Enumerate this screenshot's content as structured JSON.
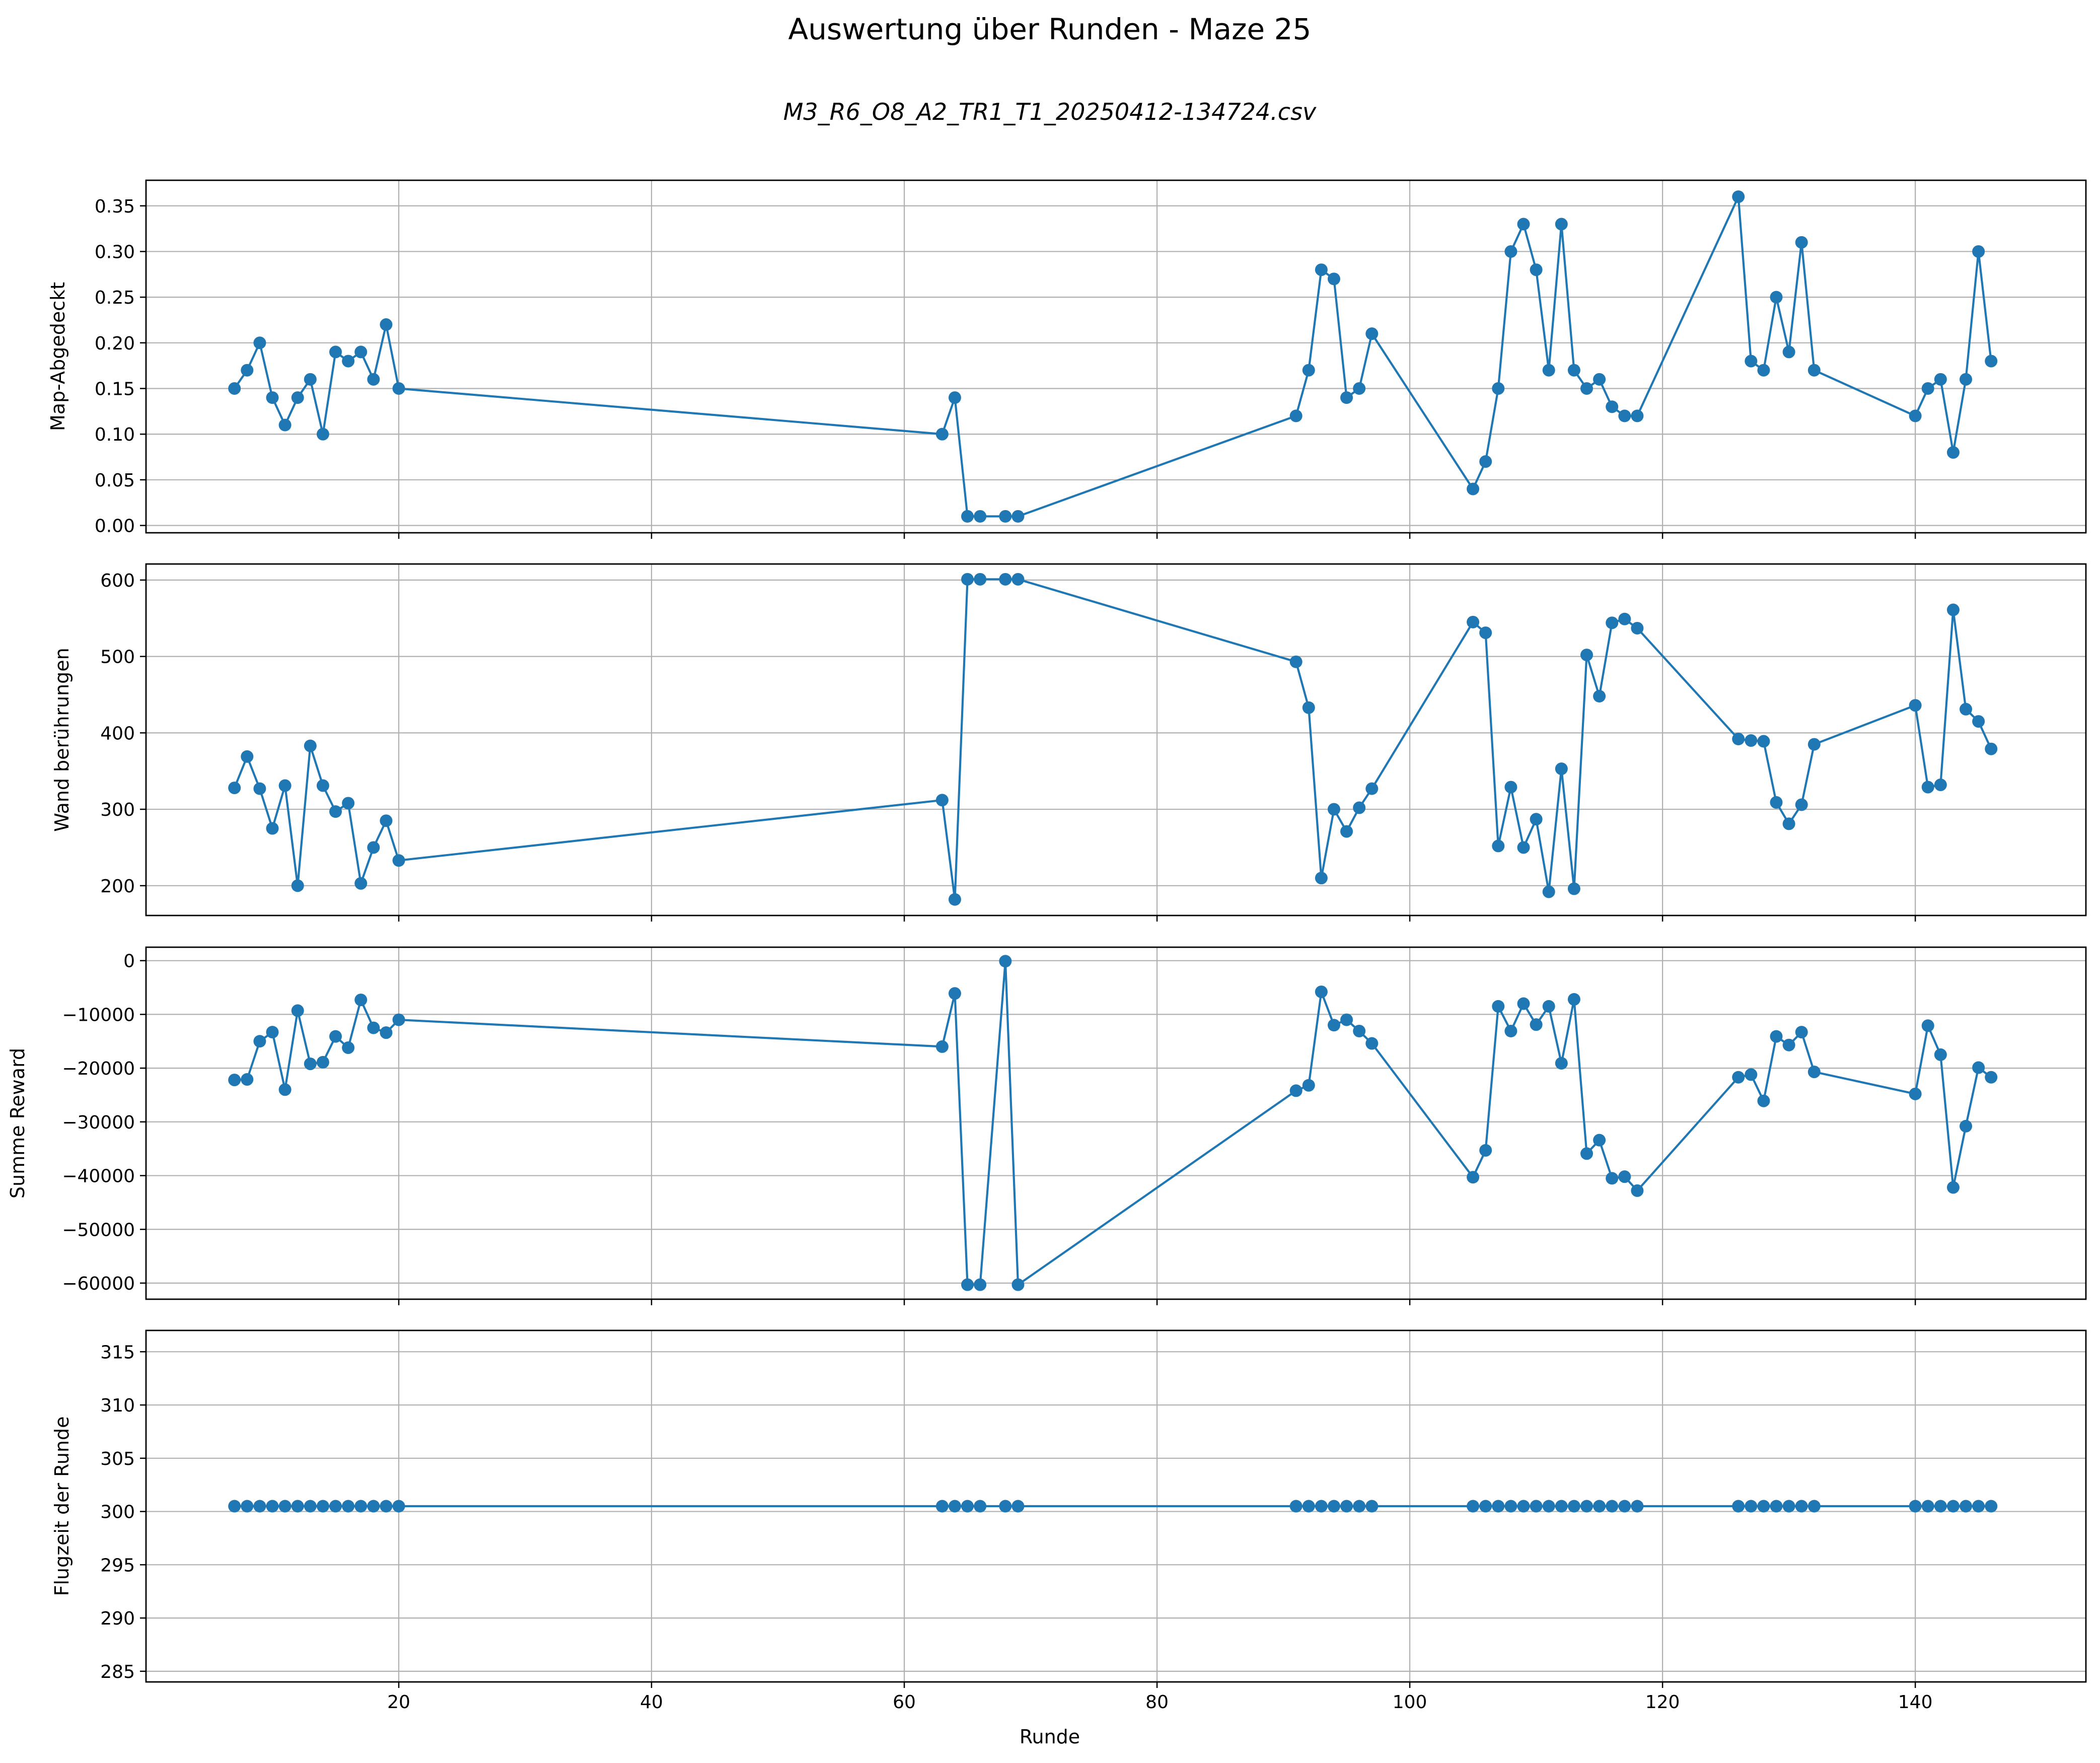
{
  "figure": {
    "title": "Auswertung über Runden - Maze 25",
    "subtitle": "M3_R6_O8_A2_TR1_T1_20250412-134724.csv",
    "xlabel": "Runde"
  },
  "colors": {
    "series": "#1f77b4",
    "grid": "#b0b0b0",
    "axes": "#000000"
  },
  "chart_data": [
    {
      "type": "line",
      "ylabel": "Map-Abgedeckt",
      "grid": true,
      "xlim": [
        0,
        153.5
      ],
      "ylim": [
        -0.008,
        0.378
      ],
      "xticks": [
        20,
        40,
        60,
        80,
        100,
        120,
        140
      ],
      "yticks": [
        0.0,
        0.05,
        0.1,
        0.15,
        0.2,
        0.25,
        0.3,
        0.35
      ],
      "ytick_labels": [
        "0.00",
        "0.05",
        "0.10",
        "0.15",
        "0.20",
        "0.25",
        "0.30",
        "0.35"
      ],
      "x": [
        7,
        8,
        9,
        10,
        11,
        12,
        13,
        14,
        15,
        16,
        17,
        18,
        19,
        20,
        63,
        64,
        65,
        66,
        68,
        69,
        91,
        92,
        93,
        94,
        95,
        96,
        97,
        105,
        106,
        107,
        108,
        109,
        110,
        111,
        112,
        113,
        114,
        115,
        116,
        117,
        118,
        126,
        127,
        128,
        129,
        130,
        131,
        132,
        140,
        141,
        142,
        143,
        144,
        145,
        146
      ],
      "y": [
        0.15,
        0.17,
        0.2,
        0.14,
        0.11,
        0.14,
        0.16,
        0.1,
        0.19,
        0.18,
        0.19,
        0.16,
        0.22,
        0.15,
        0.1,
        0.14,
        0.01,
        0.01,
        0.01,
        0.01,
        0.12,
        0.17,
        0.28,
        0.27,
        0.14,
        0.15,
        0.21,
        0.04,
        0.07,
        0.15,
        0.3,
        0.33,
        0.28,
        0.17,
        0.33,
        0.17,
        0.15,
        0.16,
        0.13,
        0.12,
        0.12,
        0.36,
        0.18,
        0.17,
        0.25,
        0.19,
        0.31,
        0.17,
        0.12,
        0.15,
        0.16,
        0.08,
        0.16,
        0.3,
        0.18
      ]
    },
    {
      "type": "line",
      "ylabel": "Wand berührungen",
      "grid": true,
      "xlim": [
        0,
        153.5
      ],
      "ylim": [
        161,
        621
      ],
      "xticks": [
        20,
        40,
        60,
        80,
        100,
        120,
        140
      ],
      "yticks": [
        200,
        300,
        400,
        500,
        600
      ],
      "ytick_labels": [
        "200",
        "300",
        "400",
        "500",
        "600"
      ],
      "x": [
        7,
        8,
        9,
        10,
        11,
        12,
        13,
        14,
        15,
        16,
        17,
        18,
        19,
        20,
        63,
        64,
        65,
        66,
        68,
        69,
        91,
        92,
        93,
        94,
        95,
        96,
        97,
        105,
        106,
        107,
        108,
        109,
        110,
        111,
        112,
        113,
        114,
        115,
        116,
        117,
        118,
        126,
        127,
        128,
        129,
        130,
        131,
        132,
        140,
        141,
        142,
        143,
        144,
        145,
        146
      ],
      "y": [
        328,
        369,
        327,
        275,
        331,
        200,
        383,
        331,
        297,
        308,
        203,
        250,
        285,
        233,
        312,
        182,
        601,
        601,
        601,
        601,
        493,
        433,
        210,
        300,
        271,
        302,
        327,
        545,
        531,
        252,
        329,
        250,
        287,
        192,
        353,
        196,
        502,
        448,
        544,
        549,
        537,
        392,
        390,
        389,
        309,
        281,
        306,
        385,
        436,
        329,
        332,
        561,
        431,
        415,
        379
      ]
    },
    {
      "type": "line",
      "ylabel": "Summe Reward",
      "grid": true,
      "xlim": [
        0,
        153.5
      ],
      "ylim": [
        -63000,
        2500
      ],
      "xticks": [
        20,
        40,
        60,
        80,
        100,
        120,
        140
      ],
      "yticks": [
        0,
        -10000,
        -20000,
        -30000,
        -40000,
        -50000,
        -60000
      ],
      "ytick_labels": [
        "0",
        "−10000",
        "−20000",
        "−30000",
        "−40000",
        "−50000",
        "−60000"
      ],
      "x": [
        7,
        8,
        9,
        10,
        11,
        12,
        13,
        14,
        15,
        16,
        17,
        18,
        19,
        20,
        63,
        64,
        65,
        66,
        68,
        69,
        91,
        92,
        93,
        94,
        95,
        96,
        97,
        105,
        106,
        107,
        108,
        109,
        110,
        111,
        112,
        113,
        114,
        115,
        116,
        117,
        118,
        126,
        127,
        128,
        129,
        130,
        131,
        132,
        140,
        141,
        142,
        143,
        144,
        145,
        146
      ],
      "y": [
        -22200,
        -22100,
        -15000,
        -13300,
        -24000,
        -9300,
        -19200,
        -18900,
        -14100,
        -16200,
        -7300,
        -12500,
        -13400,
        -11000,
        -16000,
        -6100,
        -60300,
        -60300,
        -100,
        -60300,
        -24200,
        -23200,
        -5800,
        -12000,
        -11000,
        -13100,
        -15400,
        -40300,
        -35300,
        -8500,
        -13100,
        -8000,
        -11900,
        -8500,
        -19100,
        -7200,
        -35900,
        -33400,
        -40500,
        -40200,
        -42800,
        -21700,
        -21200,
        -26100,
        -14100,
        -15700,
        -13300,
        -20700,
        -24800,
        -12100,
        -17500,
        -42200,
        -30800,
        -19900,
        -21700
      ]
    },
    {
      "type": "line",
      "ylabel": "Flugzeit der Runde",
      "grid": true,
      "xlim": [
        0,
        153.5
      ],
      "ylim": [
        284,
        317
      ],
      "xticks": [
        20,
        40,
        60,
        80,
        100,
        120,
        140
      ],
      "yticks": [
        285,
        290,
        295,
        300,
        305,
        310,
        315
      ],
      "ytick_labels": [
        "285",
        "290",
        "295",
        "300",
        "305",
        "310",
        "315"
      ],
      "x": [
        7,
        8,
        9,
        10,
        11,
        12,
        13,
        14,
        15,
        16,
        17,
        18,
        19,
        20,
        63,
        64,
        65,
        66,
        68,
        69,
        91,
        92,
        93,
        94,
        95,
        96,
        97,
        105,
        106,
        107,
        108,
        109,
        110,
        111,
        112,
        113,
        114,
        115,
        116,
        117,
        118,
        126,
        127,
        128,
        129,
        130,
        131,
        132,
        140,
        141,
        142,
        143,
        144,
        145,
        146
      ],
      "y": [
        300.5,
        300.5,
        300.5,
        300.5,
        300.5,
        300.5,
        300.5,
        300.5,
        300.5,
        300.5,
        300.5,
        300.5,
        300.5,
        300.5,
        300.5,
        300.5,
        300.5,
        300.5,
        300.5,
        300.5,
        300.5,
        300.5,
        300.5,
        300.5,
        300.5,
        300.5,
        300.5,
        300.5,
        300.5,
        300.5,
        300.5,
        300.5,
        300.5,
        300.5,
        300.5,
        300.5,
        300.5,
        300.5,
        300.5,
        300.5,
        300.5,
        300.5,
        300.5,
        300.5,
        300.5,
        300.5,
        300.5,
        300.5,
        300.5,
        300.5,
        300.5,
        300.5,
        300.5,
        300.5,
        300.5
      ]
    }
  ]
}
